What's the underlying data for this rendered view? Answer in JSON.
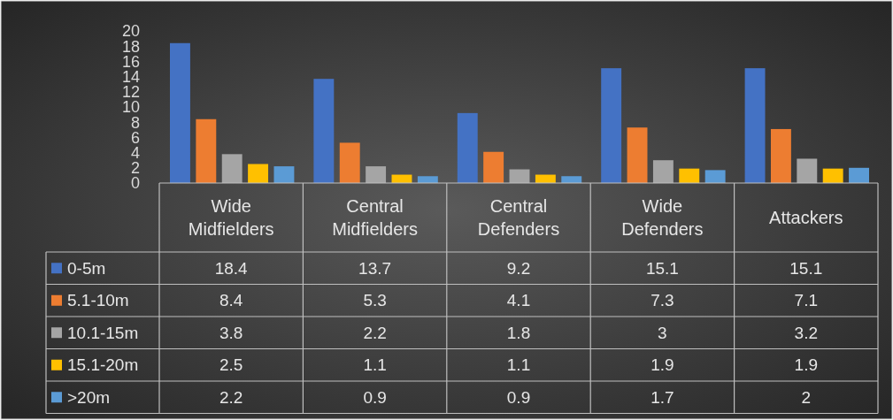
{
  "chart_data": {
    "type": "bar",
    "categories": [
      "Wide Midfielders",
      "Central Midfielders",
      "Central Defenders",
      "Wide Defenders",
      "Attackers"
    ],
    "series": [
      {
        "name": "0-5m",
        "color": "#4472c4",
        "values": [
          18.4,
          13.7,
          9.2,
          15.1,
          15.1
        ]
      },
      {
        "name": "5.1-10m",
        "color": "#ed7d31",
        "values": [
          8.4,
          5.3,
          4.1,
          7.3,
          7.1
        ]
      },
      {
        "name": "10.1-15m",
        "color": "#a5a5a5",
        "values": [
          3.8,
          2.2,
          1.8,
          3,
          3.2
        ]
      },
      {
        "name": "15.1-20m",
        "color": "#ffc000",
        "values": [
          2.5,
          1.1,
          1.1,
          1.9,
          1.9
        ]
      },
      {
        "name": ">20m",
        "color": "#5b9bd5",
        "values": [
          2.2,
          0.9,
          0.9,
          1.7,
          2
        ]
      }
    ],
    "ylim": [
      0,
      20
    ],
    "yticks": [
      0,
      2,
      4,
      6,
      8,
      10,
      12,
      14,
      16,
      18,
      20
    ],
    "grid": false,
    "legend": "bottom",
    "data_labels": true
  }
}
